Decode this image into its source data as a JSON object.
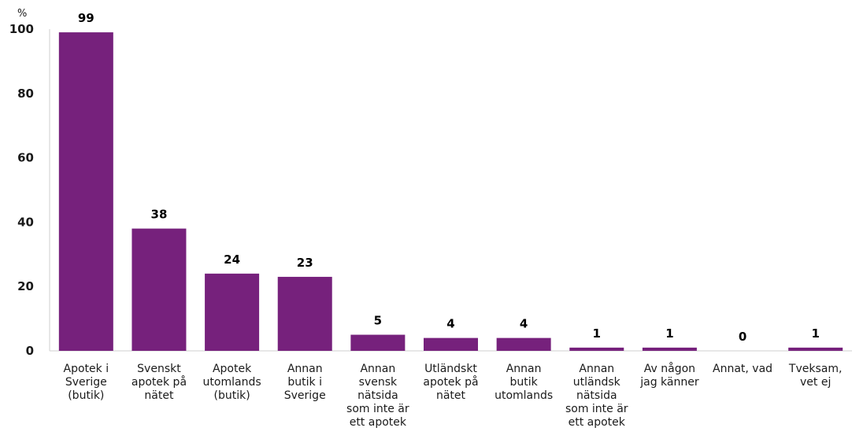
{
  "chart_data": {
    "type": "bar",
    "ylabel": "%",
    "ylim": [
      0,
      100
    ],
    "yticks": [
      0,
      20,
      40,
      60,
      80,
      100
    ],
    "categories": [
      [
        "Apotek i",
        "Sverige",
        "(butik)"
      ],
      [
        "Svenskt",
        "apotek på",
        "nätet"
      ],
      [
        "Apotek",
        "utomlands",
        "(butik)"
      ],
      [
        "Annan",
        "butik i",
        "Sverige"
      ],
      [
        "Annan",
        "svensk",
        "nätsida",
        "som inte är",
        "ett apotek"
      ],
      [
        "Utländskt",
        "apotek på",
        "nätet"
      ],
      [
        "Annan",
        "butik",
        "utomlands"
      ],
      [
        "Annan",
        "utländsk",
        "nätsida",
        "som inte är",
        "ett apotek"
      ],
      [
        "Av någon",
        "jag känner"
      ],
      [
        "Annat, vad"
      ],
      [
        "Tveksam,",
        "vet ej"
      ]
    ],
    "values": [
      99,
      38,
      24,
      23,
      5,
      4,
      4,
      1,
      1,
      0,
      1
    ],
    "color": "#76217c",
    "grid": false,
    "legend": "none"
  }
}
